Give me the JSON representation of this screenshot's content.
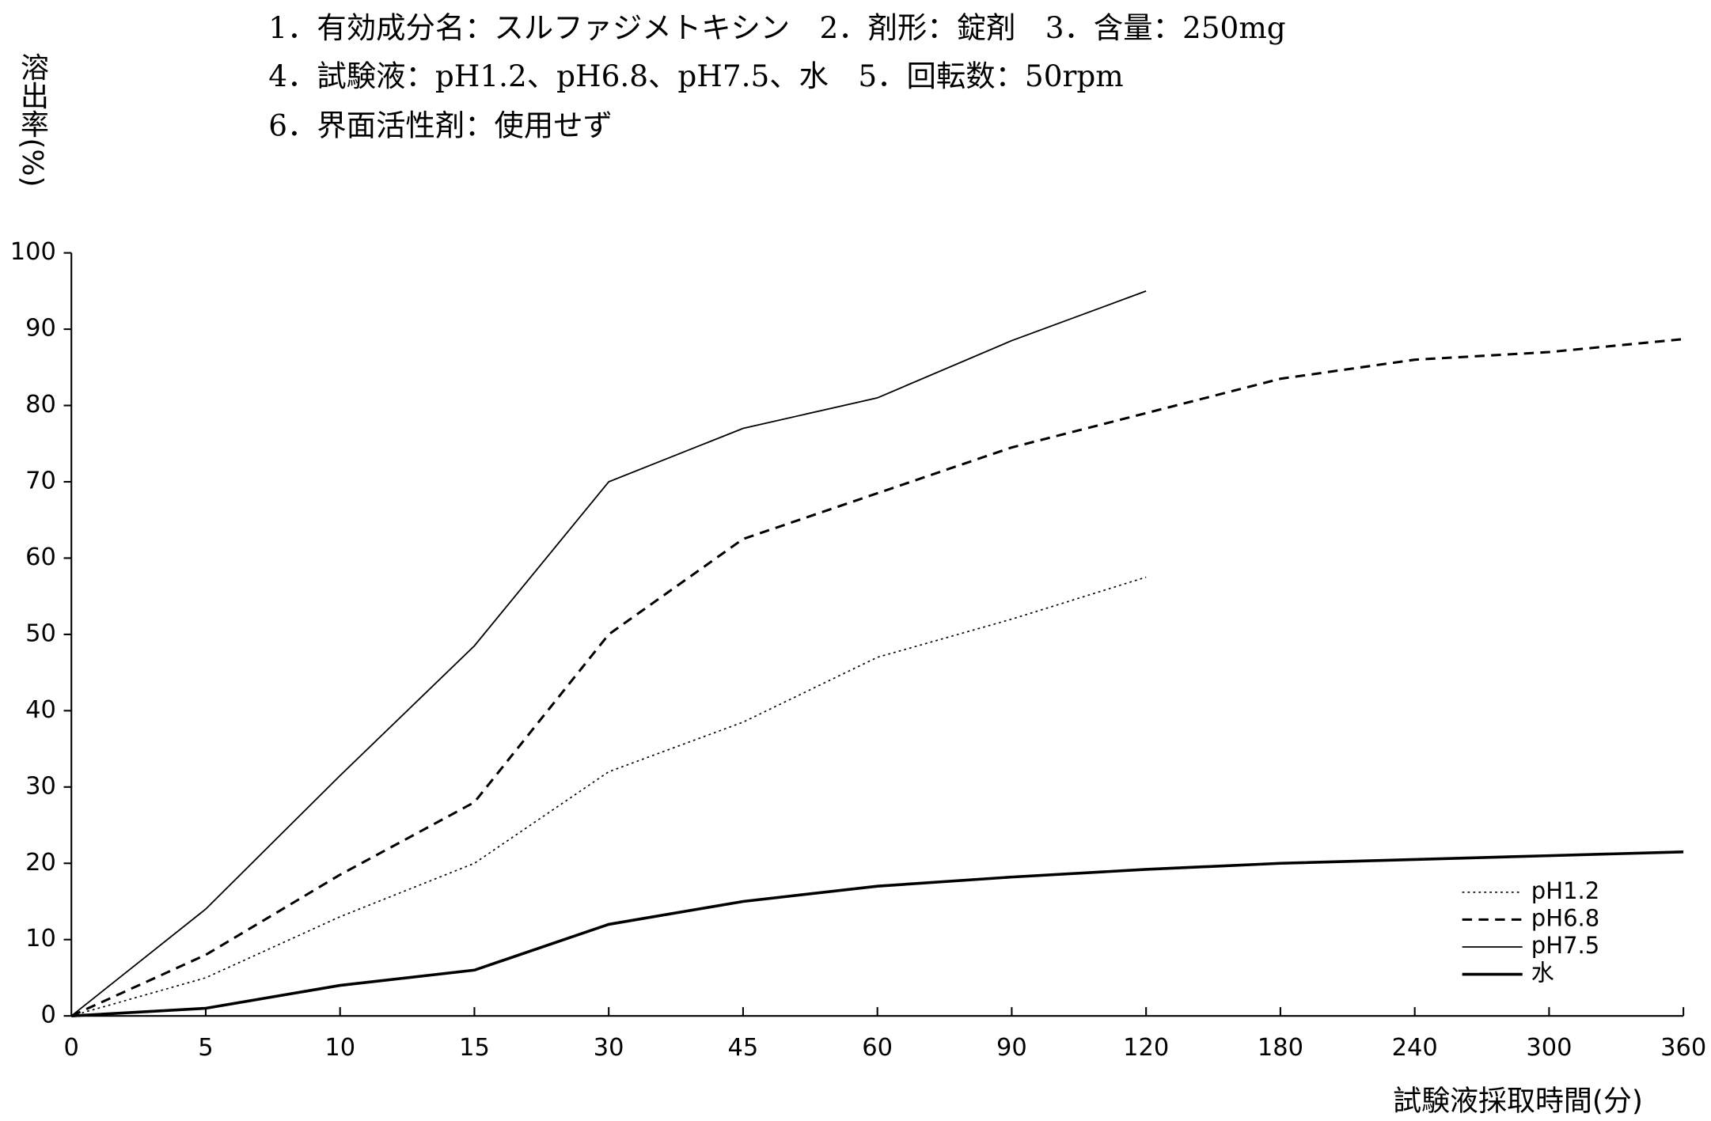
{
  "chart_data": {
    "type": "line",
    "header_lines": [
      "1．有効成分名：スルファジメトキシン　2．剤形：錠剤　3．含量：250mg",
      "4．試験液：pH1.2、pH6.8、pH7.5、水　5．回転数：50rpm",
      "6．界面活性剤：使用せず"
    ],
    "y_label": "溶出率(%)",
    "x_label": "試験液採取時間(分)",
    "categories": [
      "0",
      "5",
      "10",
      "15",
      "30",
      "45",
      "60",
      "90",
      "120",
      "180",
      "240",
      "300",
      "360"
    ],
    "series": [
      {
        "name": "pH1.2",
        "color": "#000000",
        "line_style": "dotted",
        "values": [
          0,
          5,
          13,
          20,
          32,
          38.5,
          47,
          52,
          57.5,
          null,
          null,
          null,
          null
        ]
      },
      {
        "name": "pH6.8",
        "color": "#000000",
        "line_style": "dashed",
        "values": [
          0,
          8,
          18.5,
          28,
          50,
          62.5,
          68.5,
          74.5,
          79,
          83.5,
          86,
          87,
          88.7
        ]
      },
      {
        "name": "pH7.5",
        "color": "#000000",
        "line_style": "solid",
        "values": [
          0,
          14,
          31.5,
          48.5,
          70,
          77,
          81,
          88.5,
          95,
          null,
          null,
          null,
          null
        ]
      },
      {
        "name": "水",
        "color": "#000000",
        "line_style": "bold",
        "values": [
          0,
          1,
          4,
          6,
          12,
          15,
          17,
          18.2,
          19.2,
          20,
          20.5,
          21,
          21.5
        ]
      }
    ],
    "ylim": [
      0,
      100
    ],
    "yticks": [
      0,
      10,
      20,
      30,
      40,
      50,
      60,
      70,
      80,
      90,
      100
    ],
    "legend": "lower right"
  }
}
